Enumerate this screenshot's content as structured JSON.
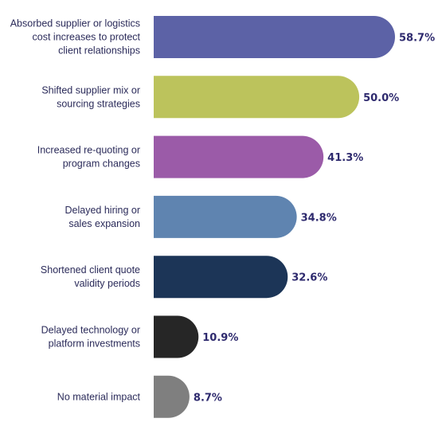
{
  "chart_data": {
    "type": "bar",
    "orientation": "horizontal",
    "categories": [
      [
        "Absorbed supplier or logistics",
        "cost increases to protect",
        "client relationships"
      ],
      [
        "Shifted supplier mix or",
        "sourcing strategies"
      ],
      [
        "Increased re-quoting or",
        "program changes"
      ],
      [
        "Delayed hiring or",
        "sales expansion"
      ],
      [
        "Shortened client quote",
        "validity periods"
      ],
      [
        "Delayed technology or",
        "platform investments"
      ],
      [
        "No material impact"
      ]
    ],
    "values": [
      58.7,
      50.0,
      41.3,
      34.8,
      32.6,
      10.9,
      8.7
    ],
    "value_labels": [
      "58.7%",
      "50.0%",
      "41.3%",
      "34.8%",
      "32.6%",
      "10.9%",
      "8.7%"
    ],
    "colors": [
      "#5c62a6",
      "#bcc35c",
      "#9b5ba8",
      "#5f84b0",
      "#1c3557",
      "#262626",
      "#7f7f7f"
    ],
    "xlim": [
      0,
      58.7
    ],
    "grid": false,
    "legend": "none",
    "bar_end": "rounded"
  }
}
